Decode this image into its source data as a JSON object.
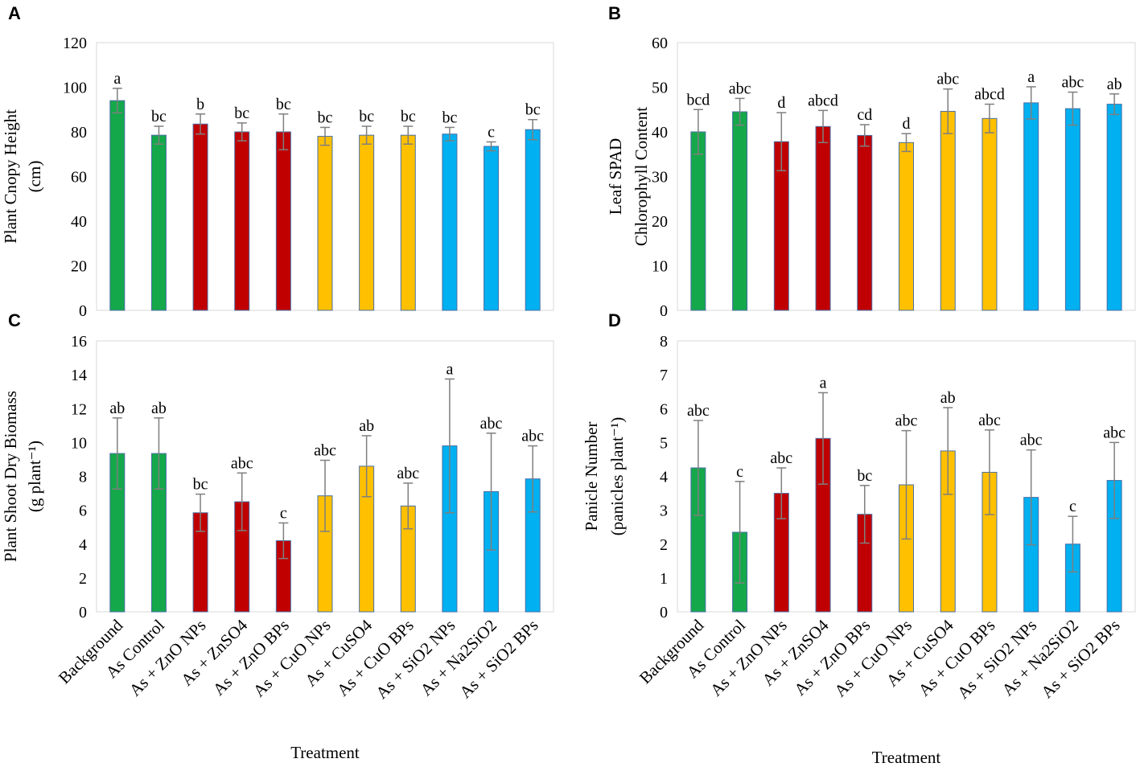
{
  "colors": {
    "green": "#14a84b",
    "red": "#c00000",
    "yellow": "#ffc000",
    "blue": "#00b0f0",
    "bar_edge": "#4a6fa5",
    "error_bar": "#7f7f7f",
    "frame": "#d9d9d9"
  },
  "bar_color_groups": [
    "green",
    "green",
    "red",
    "red",
    "red",
    "yellow",
    "yellow",
    "yellow",
    "blue",
    "blue",
    "blue"
  ],
  "x_axis_title": "Treatment",
  "chart_data": [
    {
      "panel": "A",
      "type": "bar",
      "ylabel_lines": [
        "Plant Cnopy Height",
        "(cm)"
      ],
      "ylim": [
        0,
        120
      ],
      "ytick_step": 20,
      "yticks": [
        "0",
        "20",
        "40",
        "60",
        "80",
        "100",
        "120"
      ],
      "categories": [
        "Background",
        "As Control",
        "As + ZnO NPs",
        "As + ZnSO4",
        "As + ZnO BPs",
        "As + CuO NPs",
        "As + CuSO4",
        "As + CuO BPs",
        "As + SiO2 NPs",
        "As + Na2SiO2",
        "As + SiO2 BPs"
      ],
      "values": [
        94,
        78.5,
        83.5,
        80,
        80,
        78,
        78.5,
        78.5,
        79,
        73.5,
        81
      ],
      "errors": [
        5.5,
        4,
        4.5,
        4,
        8,
        4,
        4,
        4,
        3,
        2,
        4.5
      ],
      "labels": [
        "a",
        "bc",
        "b",
        "bc",
        "bc",
        "bc",
        "bc",
        "bc",
        "bc",
        "c",
        "bc"
      ]
    },
    {
      "panel": "B",
      "type": "bar",
      "ylabel_lines": [
        "Leaf SPAD",
        "Chlorophyll Content"
      ],
      "ylim": [
        0,
        60
      ],
      "ytick_step": 10,
      "yticks": [
        "0",
        "10",
        "20",
        "30",
        "40",
        "50",
        "60"
      ],
      "categories": [
        "Background",
        "As Control",
        "As + ZnO NPs",
        "As + ZnSO4",
        "As + ZnO BPs",
        "As + CuO NPs",
        "As + CuSO4",
        "As + CuO BPs",
        "As + SiO2 NPs",
        "As + Na2SiO2",
        "As + SiO2 BPs"
      ],
      "values": [
        40,
        44.5,
        37.8,
        41.2,
        39.2,
        37.6,
        44.6,
        43,
        46.5,
        45.2,
        46.2
      ],
      "errors": [
        5,
        3,
        6.5,
        3.6,
        2.4,
        2,
        5,
        3.2,
        3.6,
        3.7,
        2.3
      ],
      "labels": [
        "bcd",
        "abc",
        "d",
        "abcd",
        "cd",
        "d",
        "abc",
        "abcd",
        "a",
        "abc",
        "ab"
      ]
    },
    {
      "panel": "C",
      "type": "bar",
      "ylabel_lines": [
        "Plant Shoot Dry Biomass",
        "(g plant⁻¹)"
      ],
      "ylim": [
        0,
        16
      ],
      "ytick_step": 2,
      "yticks": [
        "0",
        "2",
        "4",
        "6",
        "8",
        "10",
        "12",
        "14",
        "16"
      ],
      "categories": [
        "Background",
        "As Control",
        "As + ZnO NPs",
        "As + ZnSO4",
        "As + ZnO BPs",
        "As + CuO NPs",
        "As + CuSO4",
        "As + CuO BPs",
        "As + SiO2 NPs",
        "As + Na2SiO2",
        "As + SiO2 BPs"
      ],
      "values": [
        9.35,
        9.35,
        5.85,
        6.5,
        4.2,
        6.85,
        8.6,
        6.25,
        9.8,
        7.1,
        7.85
      ],
      "errors": [
        2.1,
        2.1,
        1.1,
        1.7,
        1.05,
        2.1,
        1.8,
        1.35,
        3.95,
        3.45,
        1.95
      ],
      "labels": [
        "ab",
        "ab",
        "bc",
        "abc",
        "c",
        "abc",
        "ab",
        "abc",
        "a",
        "abc",
        "abc"
      ],
      "show_xtick_labels": true,
      "show_xtitle": true
    },
    {
      "panel": "D",
      "type": "bar",
      "ylabel_lines": [
        "Panicle Number",
        "(panicles plant⁻¹)"
      ],
      "ylim": [
        0,
        8
      ],
      "ytick_step": 1,
      "yticks": [
        "0",
        "1",
        "2",
        "3",
        "4",
        "5",
        "6",
        "7",
        "8"
      ],
      "categories": [
        "Background",
        "As Control",
        "As + ZnO NPs",
        "As + ZnSO4",
        "As + ZnO BPs",
        "As + CuO NPs",
        "As + CuSO4",
        "As + CuO BPs",
        "As + SiO2 NPs",
        "As + Na2SiO2",
        "As + SiO2 BPs"
      ],
      "values": [
        4.25,
        2.35,
        3.5,
        5.12,
        2.88,
        3.75,
        4.75,
        4.12,
        3.38,
        2.0,
        3.88
      ],
      "errors": [
        1.4,
        1.5,
        0.75,
        1.35,
        0.85,
        1.6,
        1.28,
        1.25,
        1.4,
        0.82,
        1.12
      ],
      "labels": [
        "abc",
        "c",
        "abc",
        "a",
        "bc",
        "abc",
        "ab",
        "abc",
        "abc",
        "c",
        "abc"
      ],
      "show_xtick_labels": true,
      "show_xtitle": true
    }
  ]
}
